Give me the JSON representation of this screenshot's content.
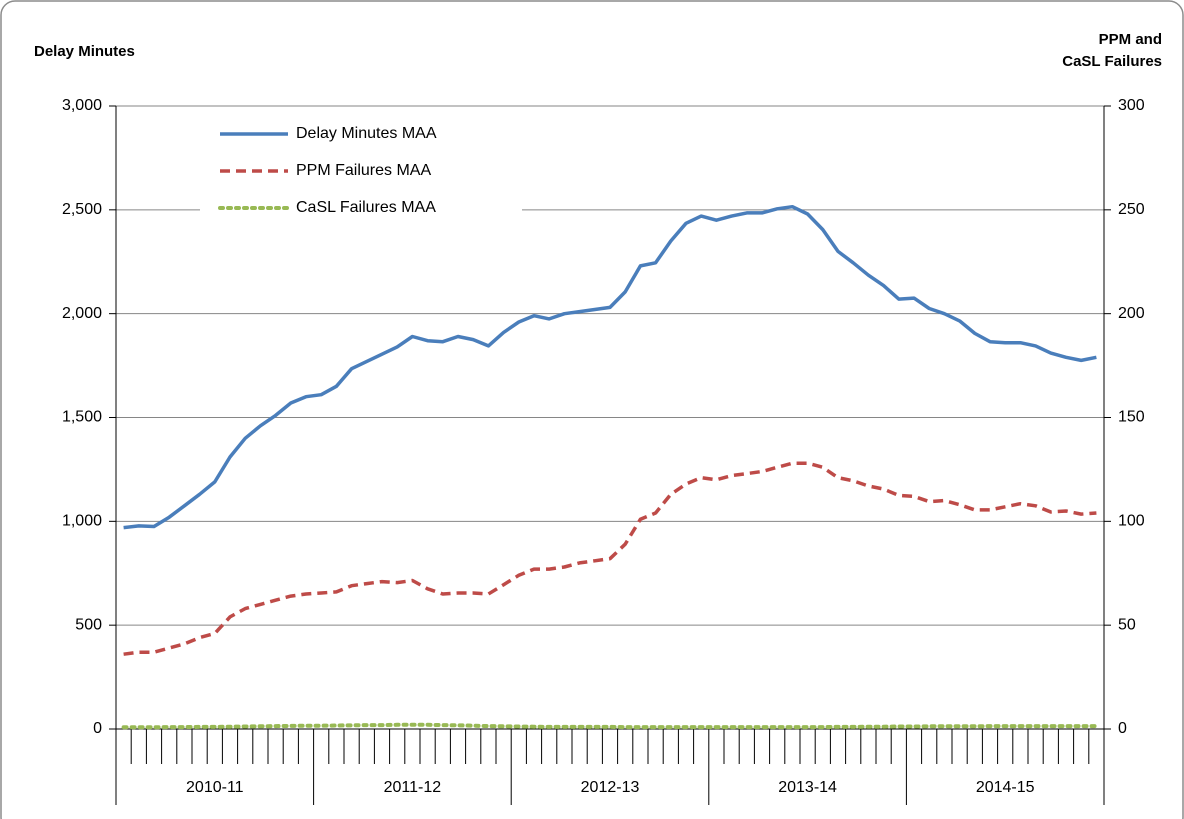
{
  "chart_data": {
    "type": "line",
    "ylabel": "Delay Minutes",
    "y2label": [
      "PPM and",
      "CaSL Failures"
    ],
    "categories": [
      null,
      null,
      null,
      null,
      null,
      null,
      null,
      null,
      null,
      null,
      null,
      null,
      null,
      null,
      null,
      null,
      null,
      null,
      null,
      null,
      null,
      null,
      null,
      null,
      null,
      null,
      null,
      null,
      null,
      null,
      null,
      null,
      null,
      null,
      null,
      null,
      null,
      null,
      null,
      null,
      null,
      null,
      null,
      null,
      null,
      null,
      null,
      null,
      null,
      null,
      null,
      null,
      null,
      null,
      null,
      null,
      null,
      null,
      null,
      null,
      null,
      null,
      null,
      null,
      null
    ],
    "groups": [
      "2010-11",
      "2011-12",
      "2012-13",
      "2013-14",
      "2014-15"
    ],
    "ylim": [
      0,
      3000
    ],
    "yticks": [
      0,
      500,
      {
        "value": 1000,
        "label": "1,000"
      },
      {
        "value": 1500,
        "label": "1,500"
      },
      {
        "value": 2000,
        "label": "2,000"
      },
      {
        "value": 2500,
        "label": "2,500"
      },
      {
        "value": 3000,
        "label": "3,000"
      }
    ],
    "y2lim": [
      0,
      300
    ],
    "y2ticks": [
      0,
      50,
      100,
      150,
      200,
      250,
      300
    ],
    "grid": true,
    "legend": "upper left",
    "series": [
      {
        "name": "Delay Minutes MAA",
        "color": "#4a7ebb",
        "style": "solid",
        "values": [
          970,
          978,
          975,
          1020,
          1075,
          1130,
          1190,
          1310,
          1400,
          1460,
          1510,
          1570,
          1600,
          1610,
          1650,
          1735,
          1770,
          1805,
          1840,
          1890,
          1870,
          1865,
          1890,
          1875,
          1845,
          1910,
          1960,
          1990,
          1975,
          2000,
          2010,
          2020,
          2030,
          2105,
          2230,
          2245,
          2350,
          2435,
          2470,
          2450,
          2470,
          2485,
          2485,
          2505,
          2515,
          2480,
          2405,
          2300,
          2245,
          2185,
          2135,
          2070,
          2075,
          2025,
          2000,
          1965,
          1905,
          1865,
          1860,
          1860,
          1845,
          1810,
          1790,
          1775,
          1790
        ]
      },
      {
        "name": "PPM Failures MAA",
        "color": "#be4b48",
        "style": "dashed",
        "axis": "y2",
        "values": [
          36,
          37,
          37,
          39,
          41,
          44,
          46,
          54,
          58,
          60,
          62,
          64,
          65,
          65.5,
          66,
          69,
          70,
          71,
          70.5,
          71.5,
          67.5,
          65,
          65.5,
          65.5,
          65,
          69.5,
          74,
          77,
          77,
          78,
          80,
          81,
          82,
          89,
          101,
          104,
          113,
          118,
          121,
          120,
          122,
          123,
          124,
          126,
          128,
          128,
          126,
          121,
          119.5,
          117,
          115.5,
          112.5,
          112,
          109.5,
          110,
          108,
          105.5,
          105.5,
          107,
          108.5,
          107.5,
          104.5,
          105,
          103.5,
          104
        ]
      },
      {
        "name": "CaSL Failures MAA",
        "color": "#98b954",
        "style": "dotted",
        "axis": "y2",
        "values": [
          0.8,
          0.8,
          0.8,
          0.9,
          0.9,
          1,
          1,
          1.1,
          1.2,
          1.3,
          1.4,
          1.5,
          1.6,
          1.6,
          1.7,
          1.8,
          1.9,
          1.9,
          2,
          2,
          2,
          1.9,
          1.8,
          1.6,
          1.4,
          1.3,
          1.2,
          1.1,
          1,
          1,
          1,
          1,
          1,
          0.9,
          0.9,
          0.9,
          0.9,
          0.9,
          0.9,
          0.9,
          0.9,
          0.9,
          0.9,
          0.9,
          0.9,
          0.9,
          0.9,
          1,
          1,
          1.1,
          1.1,
          1.2,
          1.2,
          1.3,
          1.3,
          1.3,
          1.3,
          1.4,
          1.4,
          1.4,
          1.4,
          1.4,
          1.4,
          1.4,
          1.4
        ]
      }
    ]
  }
}
